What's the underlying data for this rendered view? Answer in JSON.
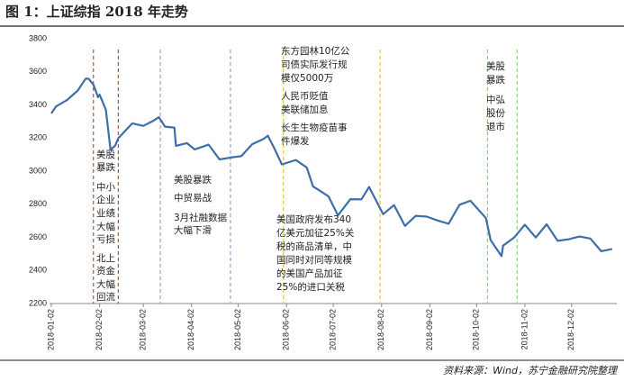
{
  "chart_data": {
    "type": "line",
    "title": "图 1：上证综指 2018 年走势",
    "source": "资料来源：Wind，苏宁金融研究院整理",
    "xlim": [
      "2018-01-02",
      "2018-12-31"
    ],
    "ylim": [
      2200,
      3800
    ],
    "yticks": [
      2200,
      2400,
      2600,
      2800,
      3000,
      3200,
      3400,
      3600,
      3800
    ],
    "xticks": [
      "2018-01-02",
      "2018-02-02",
      "2018-03-02",
      "2018-04-02",
      "2018-05-02",
      "2018-06-02",
      "2018-07-02",
      "2018-08-02",
      "2018-09-02",
      "2018-10-02",
      "2018-11-02",
      "2018-12-02"
    ],
    "grid": false,
    "x": [
      "2018-01-02",
      "2018-01-05",
      "2018-01-12",
      "2018-01-19",
      "2018-01-24",
      "2018-01-26",
      "2018-01-29",
      "2018-02-01",
      "2018-02-02",
      "2018-02-06",
      "2018-02-09",
      "2018-02-12",
      "2018-02-14",
      "2018-02-23",
      "2018-03-02",
      "2018-03-09",
      "2018-03-12",
      "2018-03-16",
      "2018-03-22",
      "2018-03-23",
      "2018-03-30",
      "2018-04-04",
      "2018-04-13",
      "2018-04-20",
      "2018-04-27",
      "2018-05-04",
      "2018-05-11",
      "2018-05-18",
      "2018-05-21",
      "2018-05-25",
      "2018-05-30",
      "2018-06-08",
      "2018-06-15",
      "2018-06-19",
      "2018-06-22",
      "2018-06-29",
      "2018-07-05",
      "2018-07-13",
      "2018-07-20",
      "2018-07-25",
      "2018-08-03",
      "2018-08-10",
      "2018-08-17",
      "2018-08-24",
      "2018-08-31",
      "2018-09-07",
      "2018-09-14",
      "2018-09-21",
      "2018-09-28",
      "2018-10-08",
      "2018-10-11",
      "2018-10-18",
      "2018-10-19",
      "2018-10-26",
      "2018-11-02",
      "2018-11-09",
      "2018-11-16",
      "2018-11-23",
      "2018-11-30",
      "2018-12-07",
      "2018-12-14",
      "2018-12-21",
      "2018-12-28"
    ],
    "series": [
      {
        "name": "上证综指",
        "color": "#3d6ea8",
        "values": [
          3349,
          3391,
          3429,
          3487,
          3559,
          3558,
          3523,
          3447,
          3462,
          3370,
          3129,
          3154,
          3199,
          3289,
          3273,
          3307,
          3326,
          3269,
          3263,
          3153,
          3169,
          3131,
          3160,
          3071,
          3082,
          3091,
          3163,
          3193,
          3214,
          3141,
          3041,
          3067,
          3022,
          2908,
          2890,
          2847,
          2733,
          2831,
          2829,
          2904,
          2740,
          2795,
          2669,
          2730,
          2725,
          2702,
          2682,
          2797,
          2821,
          2716,
          2583,
          2486,
          2550,
          2598,
          2676,
          2599,
          2679,
          2579,
          2588,
          2605,
          2593,
          2516,
          2530
        ]
      }
    ],
    "vlines": [
      {
        "x": "2018-01-29",
        "color": "#d9453d"
      },
      {
        "x": "2018-02-14",
        "color": "#d9453d"
      },
      {
        "x": "2018-03-13",
        "color": "#a89ad8"
      },
      {
        "x": "2018-04-27",
        "color": "#a89ad8"
      },
      {
        "x": "2018-05-31",
        "color": "#f0c030"
      },
      {
        "x": "2018-08-01",
        "color": "#f0c030"
      },
      {
        "x": "2018-10-09",
        "color": "#8fd07a"
      },
      {
        "x": "2018-10-28",
        "color": "#8fd07a"
      }
    ],
    "annotations": [
      [
        "美股",
        "暴跌",
        "中小",
        "企业",
        "业绩",
        "大幅",
        "亏损",
        "北上",
        "资金",
        "大幅",
        "回流"
      ],
      [
        "美股暴跌",
        "中贸易战",
        "3月社融数据",
        "大幅下滑"
      ],
      [
        "东方园林10亿公",
        "司债实际发行规",
        "模仅5000万",
        "人民币贬值",
        "美联储加息",
        "长生生物疫苗事",
        "件爆发"
      ],
      [
        "美国政府发布340",
        "亿美元加征25%关",
        "税的商品清单，中",
        "国同时对同等规模",
        "的美国产品加征",
        "25%的进口关税"
      ],
      [
        "美股",
        "暴跌",
        "中弘",
        "股份",
        "退市"
      ]
    ]
  }
}
